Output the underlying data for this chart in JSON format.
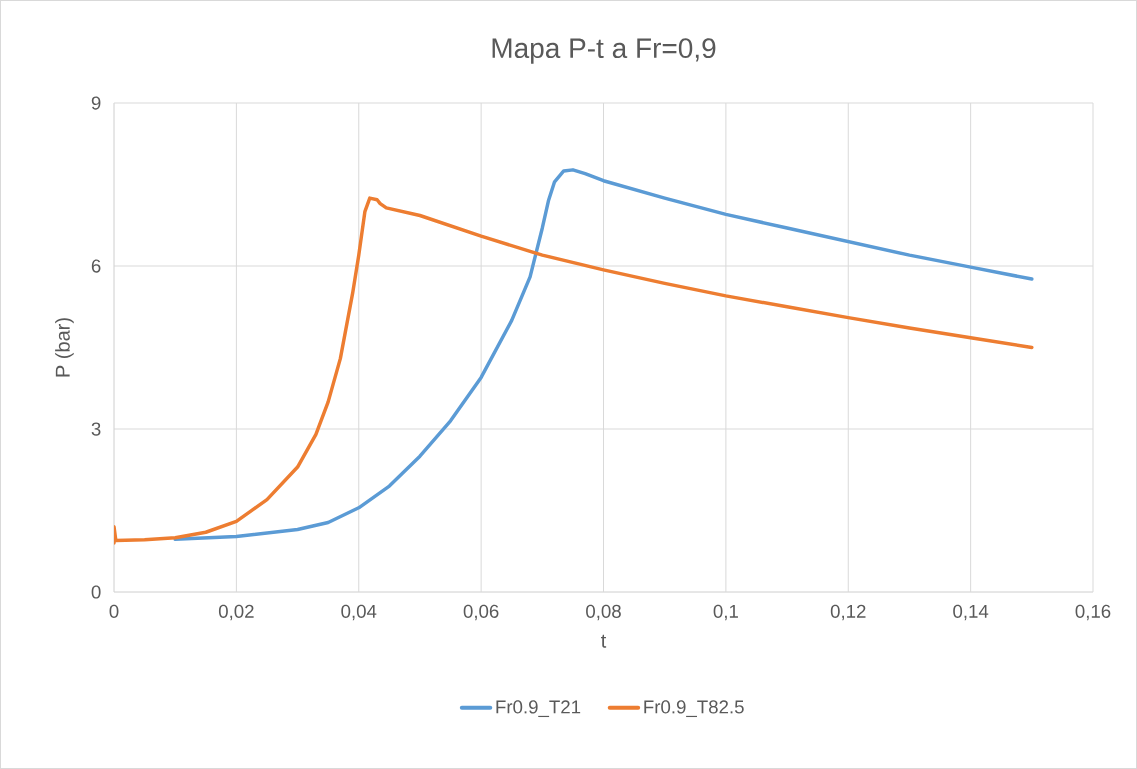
{
  "chart_data": {
    "type": "line",
    "title": "Mapa P-t a Fr=0,9",
    "xlabel": "t",
    "ylabel": "P (bar)",
    "xlim": [
      0,
      0.16
    ],
    "ylim": [
      0,
      9
    ],
    "xticks": [
      {
        "value": 0,
        "label": "0"
      },
      {
        "value": 0.02,
        "label": "0,02"
      },
      {
        "value": 0.04,
        "label": "0,04"
      },
      {
        "value": 0.06,
        "label": "0,06"
      },
      {
        "value": 0.08,
        "label": "0,08"
      },
      {
        "value": 0.1,
        "label": "0,1"
      },
      {
        "value": 0.12,
        "label": "0,12"
      },
      {
        "value": 0.14,
        "label": "0,14"
      },
      {
        "value": 0.16,
        "label": "0,16"
      }
    ],
    "yticks": [
      0,
      3,
      6,
      9
    ],
    "grid": true,
    "legend": "bottom",
    "marker": "none",
    "line_style": "solid",
    "series": [
      {
        "name": "Fr0.9_T21",
        "color": "#5b9bd5",
        "x": [
          0.01,
          0.02,
          0.03,
          0.035,
          0.04,
          0.045,
          0.05,
          0.055,
          0.06,
          0.065,
          0.068,
          0.07,
          0.071,
          0.072,
          0.0735,
          0.075,
          0.077,
          0.08,
          0.09,
          0.1,
          0.11,
          0.12,
          0.13,
          0.14,
          0.15
        ],
        "values": [
          0.97,
          1.02,
          1.15,
          1.28,
          1.55,
          1.95,
          2.5,
          3.15,
          3.95,
          5.0,
          5.8,
          6.7,
          7.2,
          7.55,
          7.75,
          7.77,
          7.7,
          7.57,
          7.25,
          6.95,
          6.7,
          6.45,
          6.2,
          5.98,
          5.76
        ]
      },
      {
        "name": "Fr0.9_T82.5",
        "color": "#ed7d31",
        "x": [
          0,
          0,
          0.0003,
          0.005,
          0.01,
          0.015,
          0.02,
          0.025,
          0.03,
          0.033,
          0.035,
          0.037,
          0.039,
          0.04,
          0.041,
          0.0418,
          0.043,
          0.0435,
          0.0445,
          0.05,
          0.06,
          0.07,
          0.08,
          0.09,
          0.1,
          0.11,
          0.12,
          0.13,
          0.14,
          0.15
        ],
        "values": [
          0.9,
          1.2,
          0.95,
          0.96,
          1.0,
          1.1,
          1.3,
          1.7,
          2.3,
          2.9,
          3.5,
          4.3,
          5.5,
          6.2,
          7.0,
          7.25,
          7.22,
          7.15,
          7.07,
          6.93,
          6.55,
          6.2,
          5.93,
          5.68,
          5.45,
          5.25,
          5.05,
          4.86,
          4.68,
          4.5
        ]
      }
    ]
  }
}
